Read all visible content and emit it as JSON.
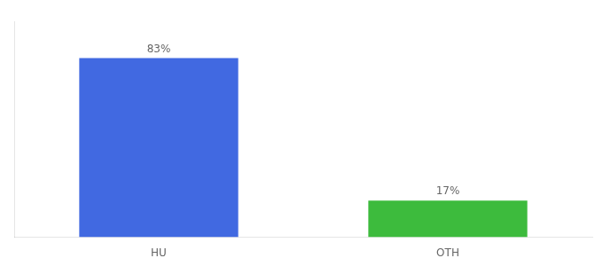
{
  "chart_data": {
    "type": "bar",
    "categories": [
      "HU",
      "OTH"
    ],
    "values": [
      83,
      17
    ],
    "value_labels": [
      "83%",
      "17%"
    ],
    "colors": [
      "#4169e1",
      "#3dbb3d"
    ],
    "data_labels": true,
    "ylim": [
      0,
      100
    ],
    "tick_labels": "x",
    "grid": false
  }
}
